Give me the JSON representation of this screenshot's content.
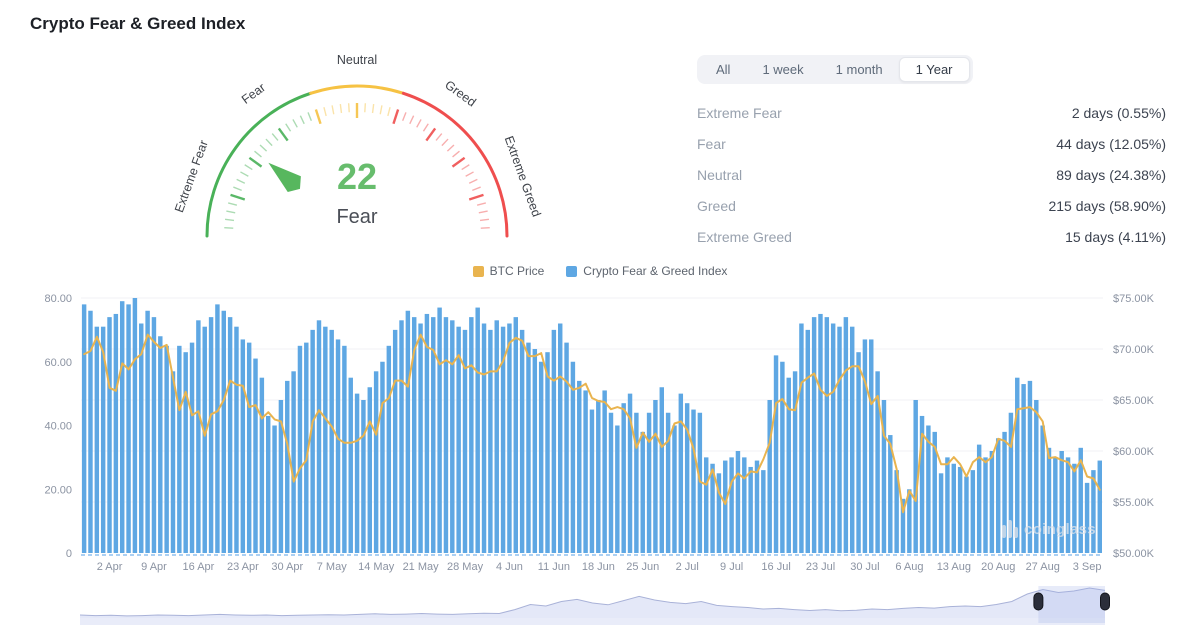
{
  "page_title": "Crypto Fear & Greed Index",
  "gauge": {
    "value": "22",
    "value_num": 22,
    "label": "Fear",
    "min": 0,
    "max": 100,
    "value_color": "#67bd6d",
    "needle_color": "#57b75e",
    "zones": [
      {
        "from": 0,
        "to": 40,
        "color": "#49b158"
      },
      {
        "from": 40,
        "to": 60,
        "color": "#f6c243"
      },
      {
        "from": 60,
        "to": 100,
        "color": "#ef4e4e"
      }
    ],
    "axis_labels": [
      {
        "text": "Extreme Fear",
        "at": 11
      },
      {
        "text": "Fear",
        "at": 30
      },
      {
        "text": "Neutral",
        "at": 50
      },
      {
        "text": "Greed",
        "at": 70
      },
      {
        "text": "Extreme Greed",
        "at": 89
      }
    ]
  },
  "stats": {
    "tabs": [
      {
        "label": "All",
        "active": false
      },
      {
        "label": "1 week",
        "active": false
      },
      {
        "label": "1 month",
        "active": false
      },
      {
        "label": "1 Year",
        "active": true
      }
    ],
    "rows": [
      {
        "label": "Extreme Fear",
        "value": "2 days (0.55%)"
      },
      {
        "label": "Fear",
        "value": "44 days (12.05%)"
      },
      {
        "label": "Neutral",
        "value": "89 days (24.38%)"
      },
      {
        "label": "Greed",
        "value": "215 days (58.90%)"
      },
      {
        "label": "Extreme Greed",
        "value": "15 days (4.11%)"
      }
    ]
  },
  "watermark": "coinglass",
  "chart_data": {
    "type": "bar",
    "title": "Crypto Fear & Greed Index vs BTC Price (daily)",
    "legend": [
      {
        "name": "BTC Price",
        "color": "#e9b44f"
      },
      {
        "name": "Crypto Fear & Greed Index",
        "color": "#5ea7e3"
      }
    ],
    "left_axis": {
      "ticks": [
        "0",
        "20.00",
        "40.00",
        "60.00",
        "80.00"
      ],
      "min": 0,
      "max": 80
    },
    "right_axis": {
      "ticks": [
        "$50.00K",
        "$55.00K",
        "$60.00K",
        "$65.00K",
        "$70.00K",
        "$75.00K"
      ],
      "min": 50,
      "max": 75
    },
    "x_tick_labels": [
      "2 Apr",
      "9 Apr",
      "16 Apr",
      "23 Apr",
      "30 Apr",
      "7 May",
      "14 May",
      "21 May",
      "28 May",
      "4 Jun",
      "11 Jun",
      "18 Jun",
      "25 Jun",
      "2 Jul",
      "9 Jul",
      "16 Jul",
      "23 Jul",
      "30 Jul",
      "6 Aug",
      "13 Aug",
      "20 Aug",
      "27 Aug",
      "3 Sep"
    ],
    "x_tick_first_bar_index": 4,
    "x_tick_step": 7,
    "series": [
      {
        "name": "Crypto Fear & Greed Index",
        "type": "bar",
        "axis": "left",
        "color": "#5ea7e3",
        "values": [
          78,
          76,
          71,
          71,
          74,
          75,
          79,
          78,
          80,
          72,
          76,
          74,
          68,
          65,
          57,
          65,
          63,
          66,
          73,
          71,
          74,
          78,
          76,
          74,
          71,
          67,
          66,
          61,
          55,
          43,
          40,
          48,
          54,
          57,
          65,
          66,
          70,
          73,
          71,
          70,
          67,
          65,
          55,
          50,
          48,
          52,
          57,
          60,
          65,
          70,
          73,
          76,
          74,
          72,
          75,
          74,
          77,
          74,
          73,
          71,
          70,
          74,
          77,
          72,
          70,
          73,
          71,
          72,
          74,
          70,
          66,
          64,
          60,
          63,
          70,
          72,
          66,
          60,
          54,
          51,
          45,
          48,
          51,
          44,
          40,
          47,
          50,
          44,
          38,
          44,
          48,
          52,
          44,
          40,
          50,
          47,
          45,
          44,
          30,
          28,
          25,
          29,
          30,
          32,
          30,
          27,
          29,
          26,
          48,
          62,
          60,
          55,
          57,
          72,
          70,
          74,
          75,
          74,
          72,
          71,
          74,
          71,
          63,
          67,
          67,
          57,
          48,
          37,
          26,
          17,
          20,
          48,
          43,
          40,
          38,
          25,
          30,
          28,
          27,
          24,
          26,
          34,
          30,
          32,
          36,
          38,
          44,
          55,
          53,
          54,
          48,
          40,
          33,
          30,
          32,
          30,
          28,
          33,
          22,
          26,
          29
        ]
      },
      {
        "name": "BTC Price",
        "type": "line",
        "axis": "right",
        "color": "#e9b44f",
        "values": [
          69.5,
          69.8,
          71.2,
          69.7,
          66.2,
          65.9,
          68.6,
          68.0,
          69.0,
          69.5,
          71.4,
          70.7,
          70.1,
          70.4,
          67.2,
          64.0,
          65.8,
          63.5,
          63.9,
          61.5,
          63.6,
          63.9,
          65.0,
          66.9,
          66.5,
          66.4,
          64.3,
          64.5,
          63.2,
          63.8,
          63.1,
          62.9,
          60.7,
          57.0,
          58.3,
          59.1,
          62.9,
          64.0,
          63.2,
          62.4,
          61.2,
          60.8,
          60.8,
          61.0,
          61.5,
          62.9,
          61.6,
          64.7,
          65.2,
          66.9,
          66.9,
          66.3,
          69.9,
          71.4,
          70.2,
          69.9,
          68.5,
          68.9,
          68.5,
          69.4,
          68.1,
          68.4,
          67.7,
          67.5,
          67.8,
          67.8,
          68.8,
          70.6,
          71.1,
          70.8,
          69.3,
          69.3,
          69.6,
          67.3,
          66.9,
          67.3,
          66.8,
          66.0,
          66.2,
          66.6,
          65.2,
          64.9,
          64.8,
          64.1,
          64.3,
          64.1,
          63.2,
          60.3,
          61.8,
          60.9,
          61.7,
          60.4,
          61.0,
          62.7,
          62.9,
          62.1,
          60.2,
          57.0,
          56.7,
          58.2,
          55.9,
          54.8,
          57.0,
          57.8,
          57.3,
          58.0,
          57.9,
          59.2,
          60.8,
          64.7,
          65.1,
          64.1,
          64.0,
          66.7,
          67.2,
          67.6,
          66.0,
          65.4,
          65.8,
          67.0,
          67.9,
          68.3,
          68.3,
          66.8,
          64.6,
          65.4,
          61.5,
          60.7,
          58.2,
          54.0,
          56.1,
          55.1,
          61.7,
          60.9,
          60.4,
          58.7,
          58.7,
          59.4,
          58.7,
          57.5,
          58.9,
          59.4,
          58.9,
          59.4,
          61.2,
          61.0,
          60.4,
          64.1,
          64.2,
          64.3,
          63.8,
          62.9,
          59.3,
          59.4,
          59.1,
          58.9,
          58.0,
          59.1,
          57.5,
          57.3,
          56.2
        ]
      }
    ],
    "navigator": {
      "values": [
        0.1,
        0.08,
        0.09,
        0.07,
        0.08,
        0.1,
        0.09,
        0.08,
        0.1,
        0.12,
        0.1,
        0.09,
        0.1,
        0.08,
        0.09,
        0.1,
        0.11,
        0.1,
        0.12,
        0.14,
        0.12,
        0.13,
        0.15,
        0.13,
        0.12,
        0.14,
        0.16,
        0.15,
        0.28,
        0.45,
        0.4,
        0.55,
        0.62,
        0.5,
        0.44,
        0.58,
        0.72,
        0.6,
        0.52,
        0.48,
        0.55,
        0.42,
        0.38,
        0.35,
        0.3,
        0.32,
        0.28,
        0.25,
        0.28,
        0.24,
        0.26,
        0.3,
        0.28,
        0.32,
        0.35,
        0.33,
        0.38,
        0.4,
        0.38,
        0.45,
        0.55,
        0.8,
        0.95,
        0.85,
        0.9,
        1.0,
        0.92
      ],
      "selection": [
        0.935,
        1.0
      ],
      "area_color": "#e4e8f8",
      "line_color": "#a9b2d8",
      "handle_color": "#2b2e3a"
    }
  }
}
